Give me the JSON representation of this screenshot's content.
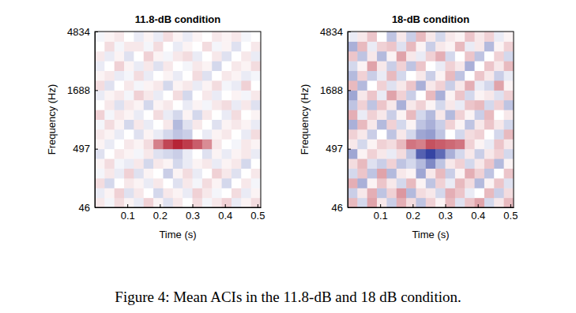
{
  "caption": "Figure 4: Mean ACIs in the 11.8-dB and 18 dB condition.",
  "chart_data": [
    {
      "type": "heatmap",
      "title": "11.8-dB condition",
      "x_label": "Time (s)",
      "y_label": "Frequency (Hz)",
      "xlim": [
        0,
        0.51
      ],
      "xticks": [
        0.1,
        0.2,
        0.3,
        0.4,
        0.5
      ],
      "ylim": [
        46,
        4834
      ],
      "yticks": [
        46,
        497,
        1688,
        4834
      ],
      "zlim": [
        -1,
        1
      ],
      "x": [
        0.015,
        0.045,
        0.075,
        0.105,
        0.135,
        0.165,
        0.195,
        0.225,
        0.255,
        0.285,
        0.315,
        0.345,
        0.375,
        0.405,
        0.435,
        0.465,
        0.495
      ],
      "y": [
        69,
        121,
        183,
        255,
        341,
        440,
        558,
        697,
        859,
        1050,
        1275,
        1539,
        1850,
        2215,
        2644,
        3149,
        3742,
        4440
      ],
      "z": [
        [
          0.1,
          -0.05,
          0.15,
          0.05,
          -0.1,
          0.2,
          0.05,
          -0.15,
          0.1,
          0.0,
          0.15,
          -0.05,
          0.1,
          0.2,
          -0.1,
          0.05,
          0.15
        ],
        [
          -0.1,
          0.05,
          0.2,
          -0.15,
          0.1,
          0.0,
          -0.2,
          0.1,
          0.05,
          -0.1,
          0.2,
          0.1,
          -0.05,
          0.0,
          0.15,
          -0.1,
          0.05
        ],
        [
          0.15,
          -0.2,
          0.0,
          0.1,
          0.05,
          -0.1,
          0.1,
          0.0,
          -0.15,
          0.1,
          -0.05,
          0.15,
          0.05,
          -0.2,
          0.0,
          0.1,
          -0.05
        ],
        [
          -0.05,
          0.1,
          -0.1,
          0.2,
          -0.15,
          0.05,
          0.0,
          -0.25,
          0.05,
          0.15,
          -0.1,
          0.0,
          0.2,
          0.1,
          -0.15,
          0.0,
          0.1
        ],
        [
          0.05,
          0.15,
          -0.05,
          -0.1,
          0.1,
          -0.2,
          0.1,
          0.05,
          -0.2,
          -0.1,
          0.05,
          0.1,
          -0.1,
          0.05,
          0.1,
          -0.2,
          0.0
        ],
        [
          -0.15,
          0.0,
          0.1,
          0.05,
          -0.05,
          0.1,
          -0.15,
          -0.2,
          -0.25,
          -0.1,
          0.0,
          -0.15,
          0.05,
          -0.1,
          0.05,
          0.1,
          -0.1
        ],
        [
          0.05,
          -0.1,
          0.0,
          0.1,
          0.05,
          0.15,
          0.55,
          0.8,
          0.95,
          0.85,
          0.7,
          0.5,
          0.1,
          0.0,
          -0.05,
          0.1,
          0.05
        ],
        [
          0.1,
          0.05,
          -0.1,
          0.0,
          -0.15,
          0.05,
          -0.1,
          -0.2,
          -0.3,
          -0.25,
          0.0,
          -0.1,
          0.05,
          0.1,
          0.0,
          -0.1,
          0.15
        ],
        [
          -0.05,
          0.15,
          0.05,
          -0.2,
          0.1,
          -0.1,
          0.0,
          0.1,
          -0.35,
          -0.15,
          0.1,
          0.0,
          -0.15,
          0.05,
          0.1,
          0.05,
          -0.1
        ],
        [
          0.2,
          -0.05,
          0.1,
          0.05,
          -0.1,
          0.0,
          0.15,
          -0.1,
          -0.2,
          0.05,
          -0.2,
          0.1,
          0.0,
          -0.1,
          0.15,
          0.0,
          0.05
        ],
        [
          0.0,
          0.1,
          -0.15,
          0.1,
          0.05,
          -0.2,
          0.05,
          0.1,
          0.0,
          -0.1,
          0.05,
          -0.05,
          0.1,
          0.15,
          -0.1,
          0.1,
          -0.15
        ],
        [
          -0.1,
          0.05,
          0.1,
          -0.05,
          0.2,
          0.1,
          -0.1,
          0.0,
          0.15,
          -0.2,
          0.0,
          0.1,
          -0.1,
          0.0,
          0.05,
          -0.05,
          0.1
        ],
        [
          0.15,
          -0.15,
          0.0,
          0.1,
          -0.05,
          0.05,
          0.1,
          -0.2,
          0.05,
          0.1,
          -0.1,
          0.05,
          0.15,
          -0.05,
          -0.1,
          0.2,
          0.0
        ],
        [
          0.05,
          0.1,
          -0.1,
          -0.05,
          0.15,
          -0.1,
          0.0,
          0.05,
          -0.1,
          0.0,
          0.15,
          -0.15,
          0.0,
          0.1,
          0.05,
          -0.1,
          -0.05
        ],
        [
          -0.1,
          0.0,
          0.2,
          0.05,
          -0.1,
          0.1,
          -0.15,
          0.1,
          0.0,
          -0.05,
          0.1,
          0.05,
          -0.2,
          0.0,
          0.1,
          0.05,
          0.15
        ],
        [
          0.1,
          -0.1,
          0.05,
          -0.15,
          0.0,
          0.2,
          0.05,
          -0.05,
          0.1,
          0.15,
          -0.1,
          0.0,
          0.1,
          -0.15,
          0.0,
          0.1,
          -0.1
        ],
        [
          0.0,
          0.15,
          -0.05,
          0.1,
          0.1,
          -0.05,
          0.15,
          0.0,
          -0.1,
          0.05,
          0.0,
          0.15,
          -0.05,
          0.05,
          -0.15,
          0.0,
          0.1
        ],
        [
          -0.05,
          0.05,
          0.1,
          0.0,
          -0.1,
          0.05,
          -0.1,
          0.15,
          0.05,
          -0.1,
          0.05,
          0.0,
          0.1,
          0.05,
          0.1,
          -0.05,
          0.0
        ]
      ]
    },
    {
      "type": "heatmap",
      "title": "18-dB condition",
      "x_label": "Time (s)",
      "y_label": "Frequency (Hz)",
      "xlim": [
        0,
        0.51
      ],
      "xticks": [
        0.1,
        0.2,
        0.3,
        0.4,
        0.5
      ],
      "ylim": [
        46,
        4834
      ],
      "yticks": [
        46,
        497,
        1688,
        4834
      ],
      "zlim": [
        -1,
        1
      ],
      "x": [
        0.015,
        0.045,
        0.075,
        0.105,
        0.135,
        0.165,
        0.195,
        0.225,
        0.255,
        0.285,
        0.315,
        0.345,
        0.375,
        0.405,
        0.435,
        0.465,
        0.495
      ],
      "y": [
        69,
        121,
        183,
        255,
        341,
        440,
        558,
        697,
        859,
        1050,
        1275,
        1539,
        1850,
        2215,
        2644,
        3149,
        3742,
        4440
      ],
      "z": [
        [
          0.3,
          -0.2,
          0.4,
          0.1,
          -0.25,
          0.35,
          0.15,
          -0.3,
          0.2,
          0.05,
          0.3,
          -0.15,
          0.25,
          0.4,
          -0.2,
          0.1,
          0.3
        ],
        [
          -0.25,
          0.1,
          0.35,
          -0.3,
          0.2,
          0.45,
          -0.35,
          0.15,
          0.1,
          -0.2,
          0.35,
          0.25,
          -0.1,
          0.0,
          0.3,
          -0.25,
          0.15
        ],
        [
          0.35,
          -0.4,
          0.05,
          0.25,
          0.1,
          -0.2,
          0.3,
          0.05,
          -0.3,
          0.2,
          -0.1,
          0.3,
          0.15,
          -0.35,
          0.05,
          0.25,
          -0.15
        ],
        [
          -0.2,
          0.25,
          -0.3,
          0.4,
          -0.35,
          0.1,
          0.05,
          -0.45,
          0.1,
          0.3,
          -0.25,
          0.05,
          0.35,
          0.2,
          -0.3,
          0.0,
          0.25
        ],
        [
          0.15,
          0.3,
          -0.15,
          -0.25,
          0.2,
          -0.3,
          -0.2,
          -0.35,
          -0.6,
          -0.3,
          0.1,
          0.2,
          -0.2,
          0.1,
          0.25,
          -0.35,
          0.05
        ],
        [
          -0.45,
          0.05,
          0.2,
          0.1,
          -0.1,
          0.15,
          -0.3,
          -0.8,
          -0.95,
          -0.75,
          -0.4,
          -0.2,
          0.1,
          -0.25,
          0.1,
          0.2,
          -0.2
        ],
        [
          0.1,
          -0.2,
          0.05,
          0.2,
          0.15,
          0.3,
          0.6,
          0.55,
          0.75,
          0.7,
          0.65,
          0.6,
          0.2,
          0.05,
          -0.1,
          0.25,
          0.1
        ],
        [
          0.2,
          0.1,
          -0.25,
          0.0,
          -0.3,
          0.1,
          -0.2,
          -0.45,
          -0.5,
          -0.3,
          0.0,
          -0.2,
          0.15,
          0.2,
          0.0,
          -0.2,
          0.3
        ],
        [
          -0.4,
          0.3,
          0.1,
          -0.35,
          0.2,
          -0.2,
          0.05,
          -0.3,
          -0.4,
          -0.25,
          0.2,
          0.05,
          -0.3,
          0.1,
          0.25,
          0.1,
          -0.2
        ],
        [
          0.35,
          -0.1,
          0.2,
          0.1,
          -0.25,
          0.05,
          0.3,
          -0.2,
          -0.35,
          0.1,
          -0.35,
          0.2,
          0.05,
          -0.25,
          0.3,
          0.0,
          0.1
        ],
        [
          -0.3,
          0.2,
          -0.3,
          0.25,
          0.1,
          -0.4,
          0.1,
          0.2,
          0.05,
          -0.2,
          0.1,
          -0.1,
          0.25,
          0.3,
          -0.2,
          0.2,
          -0.3
        ],
        [
          -0.45,
          0.1,
          0.25,
          -0.1,
          0.4,
          0.2,
          -0.25,
          0.0,
          0.3,
          -0.4,
          0.05,
          0.25,
          -0.2,
          0.05,
          0.1,
          -0.15,
          0.2
        ],
        [
          0.3,
          -0.35,
          0.0,
          0.2,
          -0.15,
          0.1,
          0.25,
          -0.4,
          0.1,
          0.2,
          -0.25,
          0.1,
          0.35,
          -0.1,
          -0.2,
          0.4,
          0.05
        ],
        [
          -0.35,
          0.2,
          -0.25,
          -0.1,
          0.3,
          -0.2,
          0.0,
          0.1,
          -0.25,
          0.05,
          0.3,
          -0.3,
          0.0,
          0.25,
          0.1,
          -0.25,
          -0.1
        ],
        [
          -0.2,
          0.05,
          0.4,
          0.1,
          -0.25,
          0.2,
          -0.3,
          0.25,
          0.0,
          -0.1,
          0.2,
          0.1,
          -0.4,
          0.0,
          0.25,
          0.1,
          0.3
        ],
        [
          0.25,
          -0.3,
          0.1,
          -0.35,
          0.05,
          0.4,
          0.1,
          -0.1,
          0.2,
          0.35,
          -0.2,
          0.0,
          0.25,
          -0.3,
          0.0,
          0.2,
          -0.2
        ],
        [
          -0.4,
          0.3,
          -0.1,
          0.2,
          0.25,
          -0.15,
          0.3,
          0.05,
          -0.25,
          0.1,
          0.05,
          0.3,
          -0.1,
          0.1,
          -0.35,
          0.05,
          0.2
        ],
        [
          -0.1,
          0.1,
          0.25,
          0.0,
          -0.3,
          0.1,
          -0.25,
          0.3,
          0.1,
          -0.2,
          0.1,
          0.05,
          0.25,
          0.1,
          0.2,
          -0.1,
          0.05
        ]
      ]
    }
  ]
}
